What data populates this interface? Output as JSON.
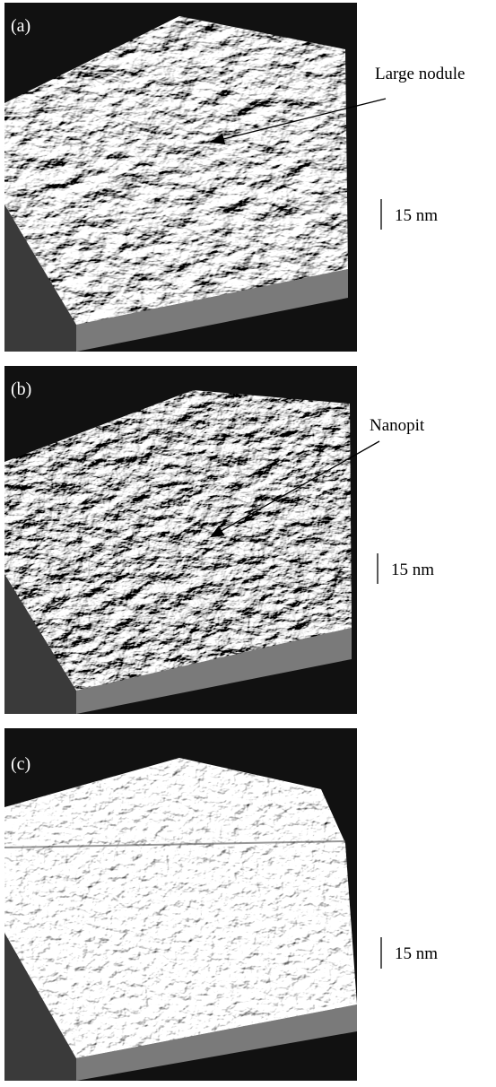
{
  "panels": [
    {
      "label": "(a)",
      "annotation": "Large nodule",
      "scale_bar": "15 nm"
    },
    {
      "label": "(b)",
      "annotation": "Nanopit",
      "scale_bar": "15 nm"
    },
    {
      "label": "(c)",
      "scale_bar": "15 nm"
    }
  ]
}
